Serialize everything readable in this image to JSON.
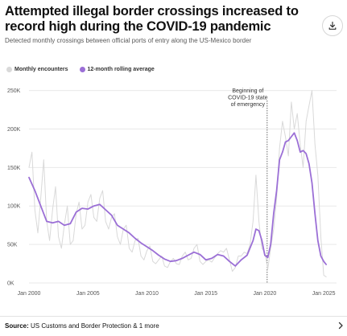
{
  "header": {
    "title": "Attempted illegal border crossings increased to record high during the COVID-19 pandemic",
    "subtitle": "Detected monthly crossings between official ports of entry along the US-Mexico border"
  },
  "toolbar": {
    "download_icon": "download-icon"
  },
  "footer": {
    "source_label": "Source:",
    "source_text": "US Customs and Border Protection & 1 more",
    "expand_icon": "chevron-right-icon"
  },
  "colors": {
    "monthly": "#d9d9d9",
    "rolling": "#9b6fd6",
    "grid": "#e9e9e9",
    "axis_text": "#555555"
  },
  "chart_data": {
    "type": "line",
    "title": "Attempted illegal border crossings increased to record high during the COVID-19 pandemic",
    "subtitle": "Detected monthly crossings between official ports of entry along the US-Mexico border",
    "xlabel": "",
    "ylabel": "",
    "xlim": [
      2000,
      2025.4
    ],
    "ylim": [
      0,
      260000
    ],
    "grid": true,
    "legend_position": "top-left",
    "x_tick_values": [
      2000,
      2005,
      2010,
      2015,
      2020,
      2025
    ],
    "x_tick_labels": [
      "Jan 2000",
      "Jan 2005",
      "Jan 2010",
      "Jan 2015",
      "Jan 2020",
      "Jan 2025"
    ],
    "y_tick_values": [
      0,
      50000,
      100000,
      150000,
      200000,
      250000
    ],
    "y_tick_labels": [
      "0K",
      "50K",
      "100K",
      "150K",
      "200K",
      "250K"
    ],
    "annotations": [
      {
        "x": 2020.2,
        "text": [
          "Beginning of",
          "COVID-19 state",
          "of emergency"
        ]
      }
    ],
    "series": [
      {
        "name": "Monthly encounters",
        "color": "#d9d9d9",
        "x": [
          2000.0,
          2000.25,
          2000.5,
          2000.75,
          2001.0,
          2001.25,
          2001.5,
          2001.75,
          2002.0,
          2002.25,
          2002.5,
          2002.75,
          2003.0,
          2003.25,
          2003.5,
          2003.75,
          2004.0,
          2004.25,
          2004.5,
          2004.75,
          2005.0,
          2005.25,
          2005.5,
          2005.75,
          2006.0,
          2006.25,
          2006.5,
          2006.75,
          2007.0,
          2007.25,
          2007.5,
          2007.75,
          2008.0,
          2008.25,
          2008.5,
          2008.75,
          2009.0,
          2009.25,
          2009.5,
          2009.75,
          2010.0,
          2010.25,
          2010.5,
          2010.75,
          2011.0,
          2011.25,
          2011.5,
          2011.75,
          2012.0,
          2012.25,
          2012.5,
          2012.75,
          2013.0,
          2013.25,
          2013.5,
          2013.75,
          2014.0,
          2014.25,
          2014.5,
          2014.75,
          2015.0,
          2015.25,
          2015.5,
          2015.75,
          2016.0,
          2016.25,
          2016.5,
          2016.75,
          2017.0,
          2017.25,
          2017.5,
          2017.75,
          2018.0,
          2018.25,
          2018.5,
          2018.75,
          2019.0,
          2019.25,
          2019.5,
          2019.75,
          2020.0,
          2020.25,
          2020.5,
          2020.75,
          2021.0,
          2021.25,
          2021.5,
          2021.75,
          2022.0,
          2022.25,
          2022.5,
          2022.75,
          2023.0,
          2023.25,
          2023.5,
          2023.75,
          2024.0,
          2024.25,
          2024.5,
          2024.75,
          2025.0,
          2025.2
        ],
        "values": [
          150000,
          170000,
          95000,
          65000,
          110000,
          160000,
          80000,
          55000,
          95000,
          125000,
          60000,
          45000,
          75000,
          100000,
          50000,
          55000,
          90000,
          105000,
          70000,
          75000,
          105000,
          115000,
          85000,
          80000,
          110000,
          120000,
          80000,
          70000,
          85000,
          90000,
          60000,
          50000,
          70000,
          75000,
          45000,
          40000,
          55000,
          58000,
          35000,
          30000,
          42000,
          48000,
          28000,
          25000,
          30000,
          35000,
          22000,
          20000,
          28000,
          32000,
          25000,
          24000,
          35000,
          40000,
          30000,
          32000,
          45000,
          50000,
          28000,
          24000,
          28000,
          30000,
          27000,
          33000,
          38000,
          42000,
          40000,
          45000,
          30000,
          15000,
          20000,
          35000,
          35000,
          40000,
          38000,
          50000,
          80000,
          140000,
          80000,
          45000,
          40000,
          18000,
          45000,
          70000,
          110000,
          175000,
          210000,
          190000,
          165000,
          235000,
          200000,
          220000,
          180000,
          150000,
          210000,
          230000,
          250000,
          180000,
          140000,
          60000,
          10000,
          8000
        ]
      },
      {
        "name": "12-month rolling average",
        "color": "#9b6fd6",
        "x": [
          2000.0,
          2000.5,
          2001.0,
          2001.5,
          2002.0,
          2002.5,
          2003.0,
          2003.5,
          2004.0,
          2004.5,
          2005.0,
          2005.5,
          2006.0,
          2006.5,
          2007.0,
          2007.5,
          2008.0,
          2008.5,
          2009.0,
          2009.5,
          2010.0,
          2010.5,
          2011.0,
          2011.5,
          2012.0,
          2012.5,
          2013.0,
          2013.5,
          2014.0,
          2014.5,
          2015.0,
          2015.5,
          2016.0,
          2016.5,
          2017.0,
          2017.5,
          2018.0,
          2018.5,
          2019.0,
          2019.25,
          2019.5,
          2019.75,
          2020.0,
          2020.25,
          2020.5,
          2020.75,
          2021.0,
          2021.25,
          2021.5,
          2021.75,
          2022.0,
          2022.25,
          2022.5,
          2022.75,
          2023.0,
          2023.25,
          2023.5,
          2023.75,
          2024.0,
          2024.25,
          2024.5,
          2024.75,
          2025.0,
          2025.2
        ],
        "values": [
          137000,
          120000,
          100000,
          80000,
          78000,
          80000,
          75000,
          77000,
          92000,
          97000,
          96000,
          100000,
          102000,
          95000,
          88000,
          75000,
          70000,
          65000,
          58000,
          52000,
          47000,
          42000,
          36000,
          31000,
          28000,
          29000,
          32000,
          36000,
          40000,
          37000,
          30000,
          32000,
          37000,
          35000,
          28000,
          22000,
          30000,
          36000,
          55000,
          70000,
          68000,
          55000,
          36000,
          33000,
          50000,
          90000,
          120000,
          160000,
          170000,
          183000,
          185000,
          190000,
          195000,
          185000,
          170000,
          172000,
          168000,
          155000,
          130000,
          90000,
          55000,
          35000,
          28000,
          24000
        ]
      }
    ]
  }
}
